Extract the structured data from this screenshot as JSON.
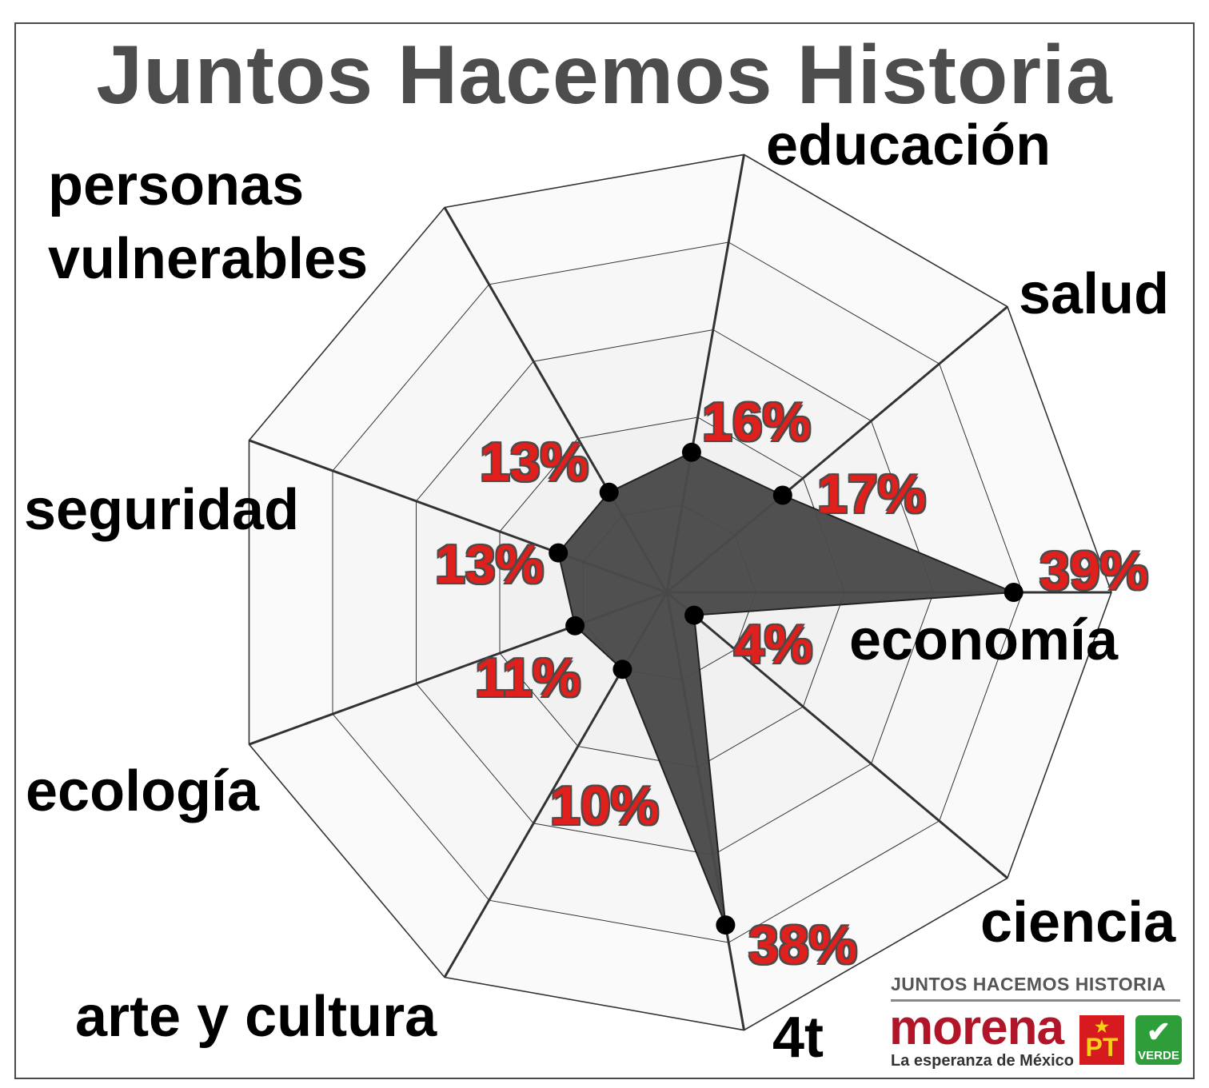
{
  "chart_data": {
    "type": "radar",
    "title": "Juntos Hacemos Historia",
    "categories": [
      "economía",
      "ciencia",
      "4t",
      "arte y cultura",
      "ecología",
      "seguridad",
      "personas vulnerables",
      "educación",
      "salud"
    ],
    "series": [
      {
        "values": [
          39,
          4,
          38,
          10,
          11,
          13,
          13,
          16,
          17
        ]
      }
    ],
    "value_labels": [
      "39%",
      "4%",
      "38%",
      "10%",
      "11%",
      "13%",
      "13%",
      "16%",
      "17%"
    ],
    "rlim": [
      0,
      50
    ],
    "grid": true,
    "grid_levels": 5
  },
  "labels": {
    "personas_line1": "personas",
    "personas_line2": "vulnerables"
  },
  "logo": {
    "top_text": "JUNTOS HACEMOS HISTORIA",
    "brand": "morena",
    "tagline": "La esperanza de México",
    "pt": "PT",
    "pt_star": "★",
    "verde": "VERDE",
    "verde_mark": "✔"
  },
  "colors": {
    "fill": "#4a4a4a",
    "point": "#000000",
    "percent": "#e0201c",
    "title": "#4d4d4d",
    "morena": "#b0152a",
    "pt": "#d71920",
    "verde": "#2e9e3a"
  }
}
